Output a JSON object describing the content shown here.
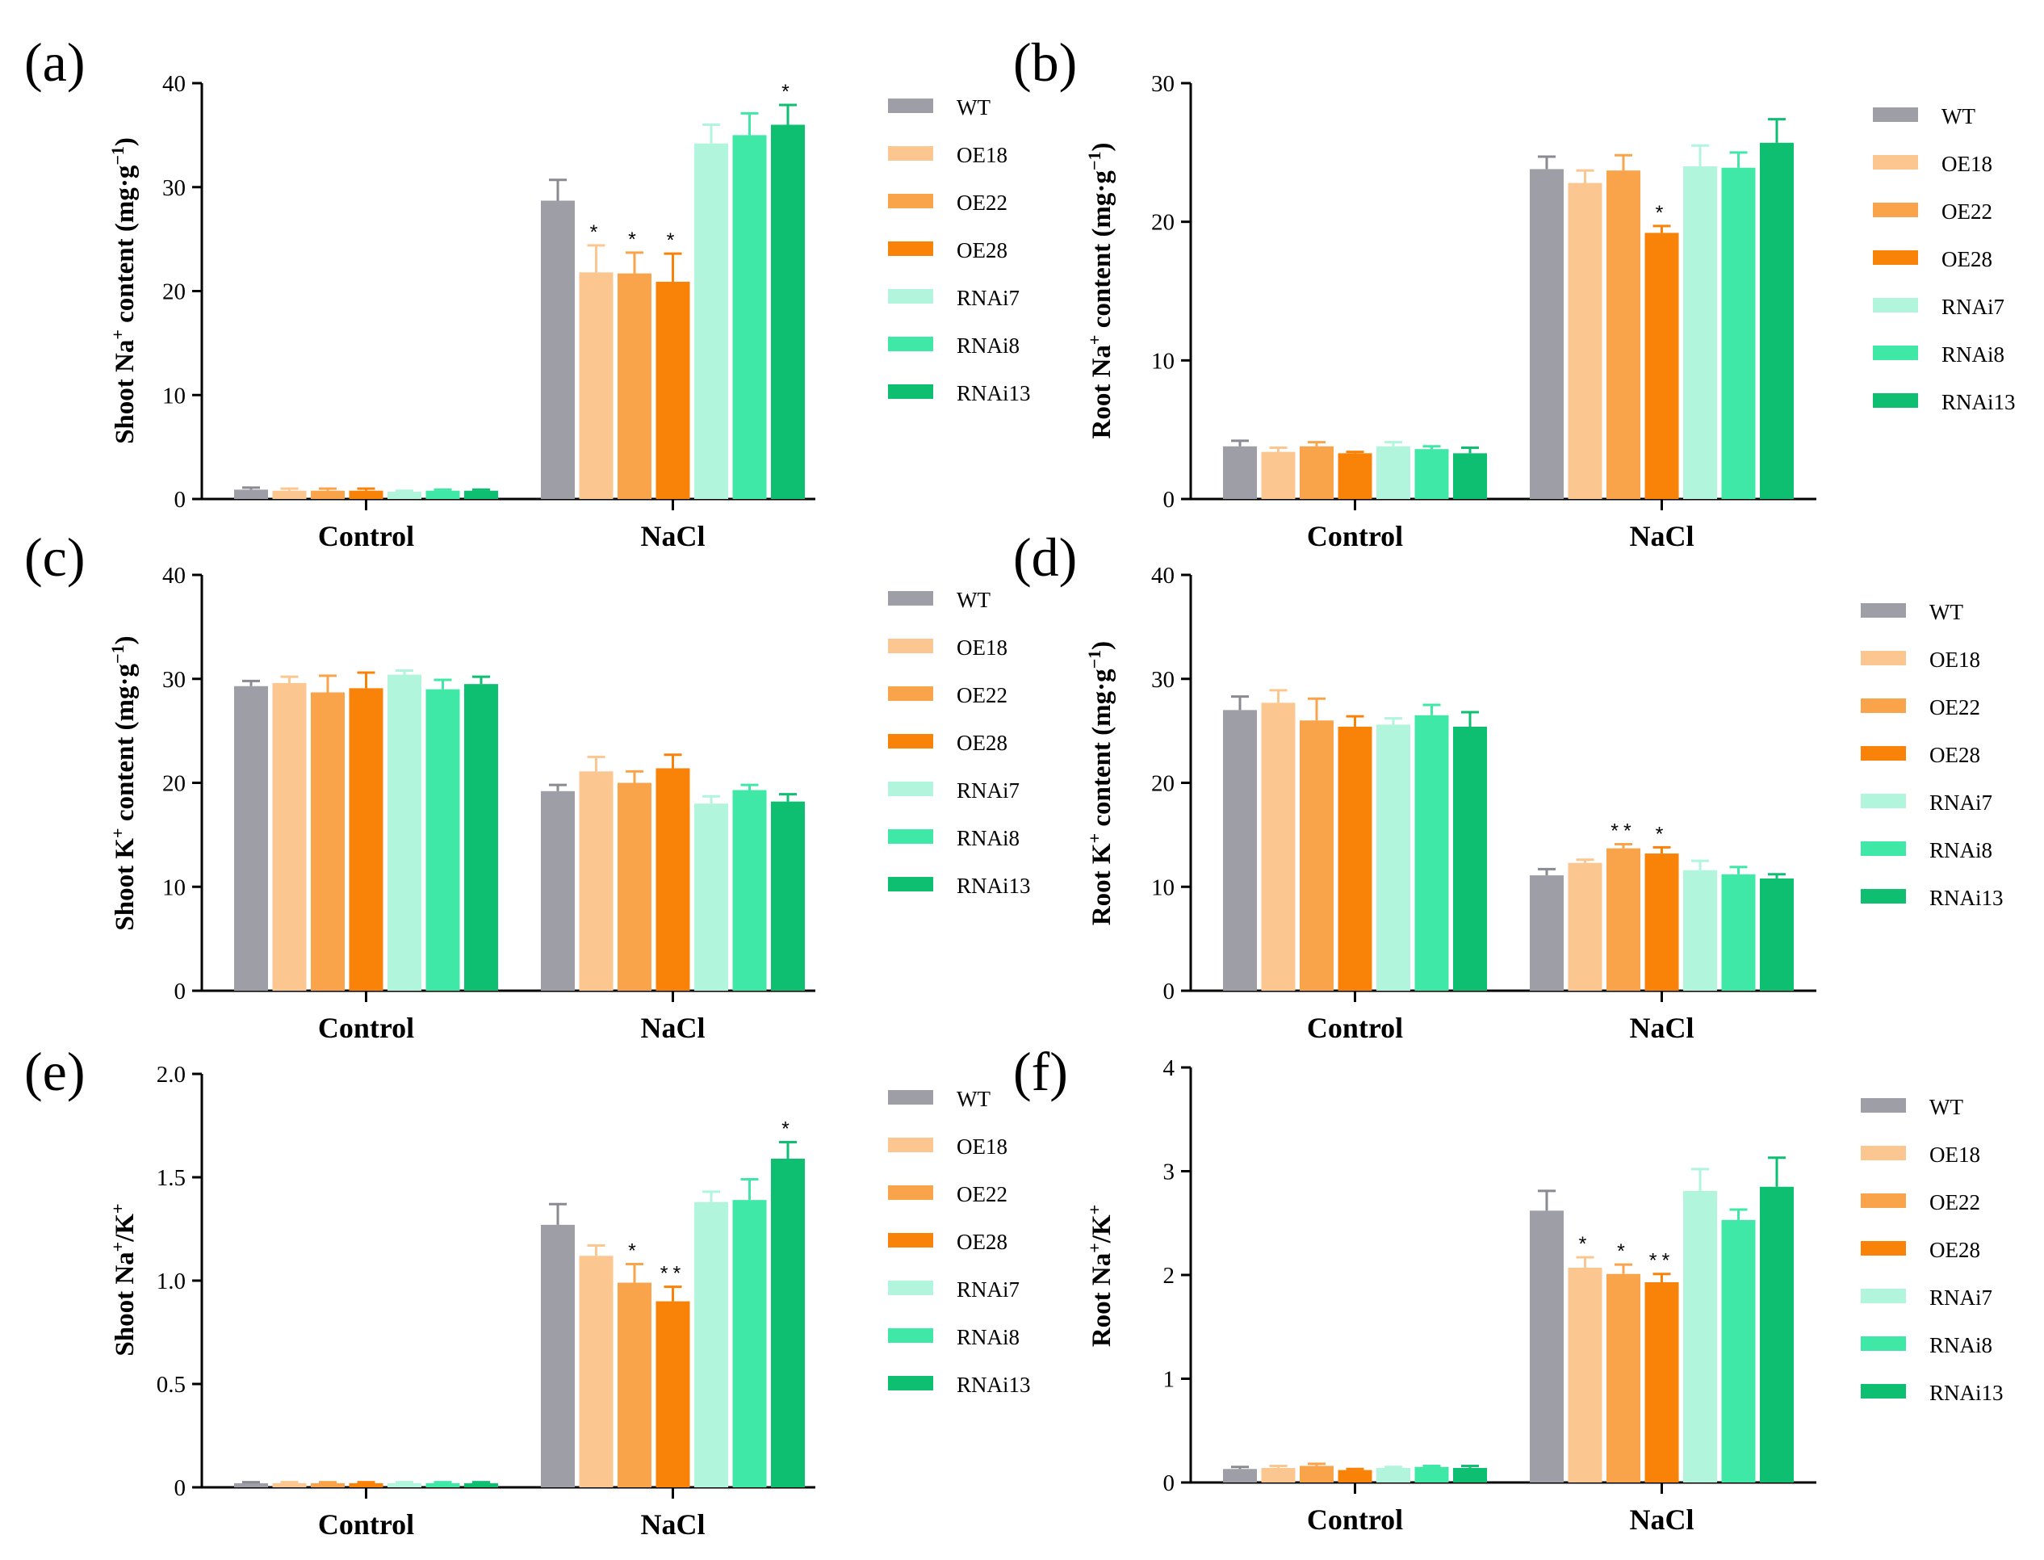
{
  "colors": {
    "WT": "#9e9ea6",
    "OE18": "#fcc690",
    "OE22": "#f9a44b",
    "OE28": "#f98209",
    "RNAi7": "#b0f5dc",
    "RNAi8": "#3fe8a6",
    "RNAi13": "#0ebf72"
  },
  "chart_data": [
    {
      "panel": "(a)",
      "type": "bar",
      "ylabel_main": "Shoot Na",
      "ylabel_sup": "+",
      "ylabel_rest": " content (mg·g",
      "ylabel_unit_sup": "−1",
      "ylabel_end": ")",
      "ylim": [
        0,
        40
      ],
      "yticks": [
        "0",
        "10",
        "20",
        "30",
        "40"
      ],
      "categories": [
        "Control",
        "NaCl"
      ],
      "series": [
        {
          "name": "WT",
          "values": [
            0.9,
            28.7
          ],
          "errors": [
            0.2,
            2.0
          ],
          "sig": [
            "",
            ""
          ]
        },
        {
          "name": "OE18",
          "values": [
            0.8,
            21.8
          ],
          "errors": [
            0.2,
            2.6
          ],
          "sig": [
            "",
            "*"
          ]
        },
        {
          "name": "OE22",
          "values": [
            0.8,
            21.7
          ],
          "errors": [
            0.2,
            2.0
          ],
          "sig": [
            "",
            "*"
          ]
        },
        {
          "name": "OE28",
          "values": [
            0.8,
            20.9
          ],
          "errors": [
            0.2,
            2.7
          ],
          "sig": [
            "",
            "*"
          ]
        },
        {
          "name": "RNAi7",
          "values": [
            0.7,
            34.2
          ],
          "errors": [
            0.1,
            1.8
          ],
          "sig": [
            "",
            ""
          ]
        },
        {
          "name": "RNAi8",
          "values": [
            0.8,
            35.0
          ],
          "errors": [
            0.1,
            2.1
          ],
          "sig": [
            "",
            ""
          ]
        },
        {
          "name": "RNAi13",
          "values": [
            0.8,
            36.0
          ],
          "errors": [
            0.1,
            1.9
          ],
          "sig": [
            "",
            "*"
          ]
        }
      ]
    },
    {
      "panel": "(b)",
      "type": "bar",
      "ylabel_main": "Root Na",
      "ylabel_sup": "+",
      "ylabel_rest": " content (mg·g",
      "ylabel_unit_sup": "−1",
      "ylabel_end": ")",
      "ylim": [
        0,
        30
      ],
      "yticks": [
        "0",
        "10",
        "20",
        "30"
      ],
      "categories": [
        "Control",
        "NaCl"
      ],
      "series": [
        {
          "name": "WT",
          "values": [
            3.8,
            23.8
          ],
          "errors": [
            0.4,
            0.9
          ],
          "sig": [
            "",
            ""
          ]
        },
        {
          "name": "OE18",
          "values": [
            3.4,
            22.8
          ],
          "errors": [
            0.3,
            0.9
          ],
          "sig": [
            "",
            ""
          ]
        },
        {
          "name": "OE22",
          "values": [
            3.8,
            23.7
          ],
          "errors": [
            0.3,
            1.1
          ],
          "sig": [
            "",
            ""
          ]
        },
        {
          "name": "OE28",
          "values": [
            3.3,
            19.2
          ],
          "errors": [
            0.1,
            0.5
          ],
          "sig": [
            "",
            "*"
          ]
        },
        {
          "name": "RNAi7",
          "values": [
            3.8,
            24.0
          ],
          "errors": [
            0.3,
            1.5
          ],
          "sig": [
            "",
            ""
          ]
        },
        {
          "name": "RNAi8",
          "values": [
            3.6,
            23.9
          ],
          "errors": [
            0.2,
            1.1
          ],
          "sig": [
            "",
            ""
          ]
        },
        {
          "name": "RNAi13",
          "values": [
            3.3,
            25.7
          ],
          "errors": [
            0.4,
            1.7
          ],
          "sig": [
            "",
            ""
          ]
        }
      ]
    },
    {
      "panel": "(c)",
      "type": "bar",
      "ylabel_main": "Shoot K",
      "ylabel_sup": "+",
      "ylabel_rest": " content (mg·g",
      "ylabel_unit_sup": "−1",
      "ylabel_end": ")",
      "ylim": [
        0,
        40
      ],
      "yticks": [
        "0",
        "10",
        "20",
        "30",
        "40"
      ],
      "categories": [
        "Control",
        "NaCl"
      ],
      "series": [
        {
          "name": "WT",
          "values": [
            29.3,
            19.2
          ],
          "errors": [
            0.5,
            0.6
          ],
          "sig": [
            "",
            ""
          ]
        },
        {
          "name": "OE18",
          "values": [
            29.6,
            21.1
          ],
          "errors": [
            0.6,
            1.4
          ],
          "sig": [
            "",
            ""
          ]
        },
        {
          "name": "OE22",
          "values": [
            28.7,
            20.0
          ],
          "errors": [
            1.6,
            1.1
          ],
          "sig": [
            "",
            ""
          ]
        },
        {
          "name": "OE28",
          "values": [
            29.1,
            21.4
          ],
          "errors": [
            1.5,
            1.3
          ],
          "sig": [
            "",
            ""
          ]
        },
        {
          "name": "RNAi7",
          "values": [
            30.4,
            18.0
          ],
          "errors": [
            0.4,
            0.7
          ],
          "sig": [
            "",
            ""
          ]
        },
        {
          "name": "RNAi8",
          "values": [
            29.0,
            19.3
          ],
          "errors": [
            0.9,
            0.5
          ],
          "sig": [
            "",
            ""
          ]
        },
        {
          "name": "RNAi13",
          "values": [
            29.5,
            18.2
          ],
          "errors": [
            0.7,
            0.7
          ],
          "sig": [
            "",
            ""
          ]
        }
      ]
    },
    {
      "panel": "(d)",
      "type": "bar",
      "ylabel_main": "Root K",
      "ylabel_sup": "+",
      "ylabel_rest": " content (mg·g",
      "ylabel_unit_sup": "−1",
      "ylabel_end": ")",
      "ylim": [
        0,
        40
      ],
      "yticks": [
        "0",
        "10",
        "20",
        "30",
        "40"
      ],
      "categories": [
        "Control",
        "NaCl"
      ],
      "series": [
        {
          "name": "WT",
          "values": [
            27.0,
            11.1
          ],
          "errors": [
            1.3,
            0.6
          ],
          "sig": [
            "",
            ""
          ]
        },
        {
          "name": "OE18",
          "values": [
            27.7,
            12.3
          ],
          "errors": [
            1.2,
            0.3
          ],
          "sig": [
            "",
            ""
          ]
        },
        {
          "name": "OE22",
          "values": [
            26.0,
            13.7
          ],
          "errors": [
            2.1,
            0.4
          ],
          "sig": [
            "",
            "**"
          ]
        },
        {
          "name": "OE28",
          "values": [
            25.4,
            13.2
          ],
          "errors": [
            1.0,
            0.6
          ],
          "sig": [
            "",
            "*"
          ]
        },
        {
          "name": "RNAi7",
          "values": [
            25.6,
            11.6
          ],
          "errors": [
            0.6,
            0.9
          ],
          "sig": [
            "",
            ""
          ]
        },
        {
          "name": "RNAi8",
          "values": [
            26.5,
            11.2
          ],
          "errors": [
            1.0,
            0.7
          ],
          "sig": [
            "",
            ""
          ]
        },
        {
          "name": "RNAi13",
          "values": [
            25.4,
            10.8
          ],
          "errors": [
            1.4,
            0.4
          ],
          "sig": [
            "",
            ""
          ]
        }
      ]
    },
    {
      "panel": "(e)",
      "type": "bar",
      "ylabel_main": "Shoot Na",
      "ylabel_sup": "+",
      "ylabel_rest": "/K",
      "ylabel_unit_sup": "+",
      "ylabel_end": "",
      "ylim": [
        0,
        2.0
      ],
      "yticks": [
        "0",
        "0.5",
        "1.0",
        "1.5",
        "2.0"
      ],
      "categories": [
        "Control",
        "NaCl"
      ],
      "series": [
        {
          "name": "WT",
          "values": [
            0.02,
            1.27
          ],
          "errors": [
            0.005,
            0.1
          ],
          "sig": [
            "",
            ""
          ]
        },
        {
          "name": "OE18",
          "values": [
            0.02,
            1.12
          ],
          "errors": [
            0.005,
            0.05
          ],
          "sig": [
            "",
            ""
          ]
        },
        {
          "name": "OE22",
          "values": [
            0.02,
            0.99
          ],
          "errors": [
            0.005,
            0.09
          ],
          "sig": [
            "",
            "*"
          ]
        },
        {
          "name": "OE28",
          "values": [
            0.02,
            0.9
          ],
          "errors": [
            0.005,
            0.07
          ],
          "sig": [
            "",
            "**"
          ]
        },
        {
          "name": "RNAi7",
          "values": [
            0.02,
            1.38
          ],
          "errors": [
            0.005,
            0.05
          ],
          "sig": [
            "",
            ""
          ]
        },
        {
          "name": "RNAi8",
          "values": [
            0.02,
            1.39
          ],
          "errors": [
            0.005,
            0.1
          ],
          "sig": [
            "",
            ""
          ]
        },
        {
          "name": "RNAi13",
          "values": [
            0.02,
            1.59
          ],
          "errors": [
            0.005,
            0.08
          ],
          "sig": [
            "",
            "*"
          ]
        }
      ]
    },
    {
      "panel": "(f)",
      "type": "bar",
      "ylabel_main": "Root Na",
      "ylabel_sup": "+",
      "ylabel_rest": "/K",
      "ylabel_unit_sup": "+",
      "ylabel_end": "",
      "ylim": [
        0,
        4
      ],
      "yticks": [
        "0",
        "1",
        "2",
        "3",
        "4"
      ],
      "categories": [
        "Control",
        "NaCl"
      ],
      "series": [
        {
          "name": "WT",
          "values": [
            0.13,
            2.62
          ],
          "errors": [
            0.02,
            0.19
          ],
          "sig": [
            "",
            ""
          ]
        },
        {
          "name": "OE18",
          "values": [
            0.14,
            2.07
          ],
          "errors": [
            0.02,
            0.1
          ],
          "sig": [
            "",
            "*"
          ]
        },
        {
          "name": "OE22",
          "values": [
            0.16,
            2.01
          ],
          "errors": [
            0.02,
            0.09
          ],
          "sig": [
            "",
            "*"
          ]
        },
        {
          "name": "OE28",
          "values": [
            0.12,
            1.93
          ],
          "errors": [
            0.01,
            0.08
          ],
          "sig": [
            "",
            "**"
          ]
        },
        {
          "name": "RNAi7",
          "values": [
            0.14,
            2.81
          ],
          "errors": [
            0.01,
            0.21
          ],
          "sig": [
            "",
            ""
          ]
        },
        {
          "name": "RNAi8",
          "values": [
            0.15,
            2.53
          ],
          "errors": [
            0.01,
            0.1
          ],
          "sig": [
            "",
            ""
          ]
        },
        {
          "name": "RNAi13",
          "values": [
            0.14,
            2.85
          ],
          "errors": [
            0.02,
            0.28
          ],
          "sig": [
            "",
            ""
          ]
        }
      ]
    }
  ]
}
